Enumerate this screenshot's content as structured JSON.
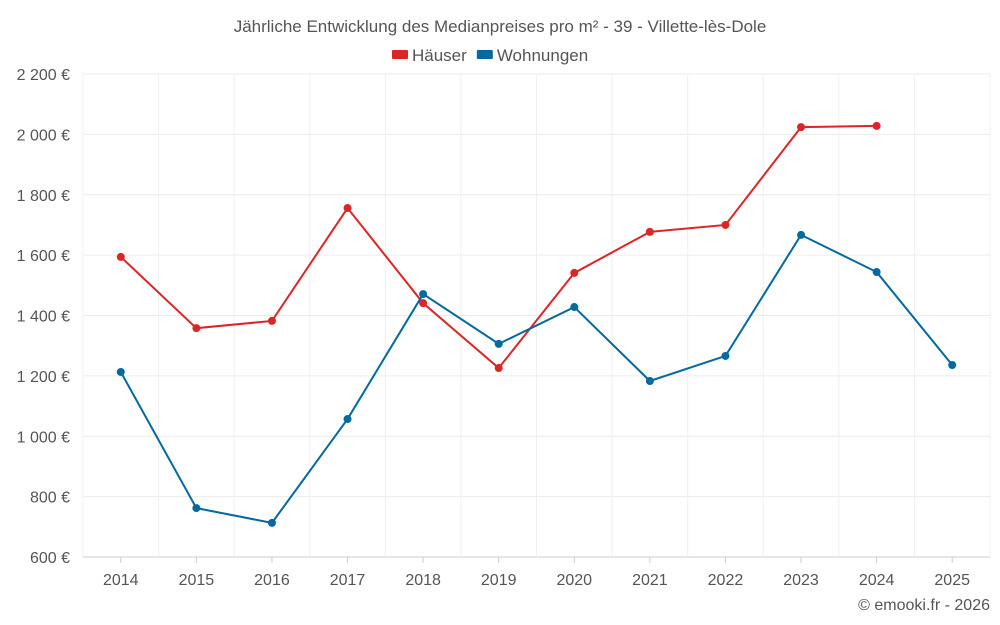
{
  "chart_data": {
    "type": "line",
    "title": "Jährliche Entwicklung des Medianpreises pro m² - 39 - Villette-lès-Dole",
    "xlabel": "",
    "ylabel": "",
    "categories": [
      "2014",
      "2015",
      "2016",
      "2017",
      "2018",
      "2019",
      "2020",
      "2021",
      "2022",
      "2023",
      "2024",
      "2025"
    ],
    "ylim": [
      600,
      2200
    ],
    "yticks": [
      600,
      800,
      1000,
      1200,
      1400,
      1600,
      1800,
      2000,
      2200
    ],
    "ytick_labels": [
      "600 €",
      "800 €",
      "1 000 €",
      "1 200 €",
      "1 400 €",
      "1 600 €",
      "1 800 €",
      "2 000 €",
      "2 200 €"
    ],
    "grid": true,
    "legend_position": "top-center",
    "series": [
      {
        "name": "Häuser",
        "color": "#dc2626",
        "values": [
          1594,
          1358,
          1382,
          1756,
          1441,
          1226,
          1541,
          1677,
          1700,
          2024,
          2028,
          null
        ]
      },
      {
        "name": "Wohnungen",
        "color": "#0369a1",
        "values": [
          1213,
          762,
          713,
          1057,
          1471,
          1306,
          1428,
          1183,
          1266,
          1667,
          1544,
          1236
        ]
      }
    ]
  },
  "credit": "© emooki.fr - 2026"
}
